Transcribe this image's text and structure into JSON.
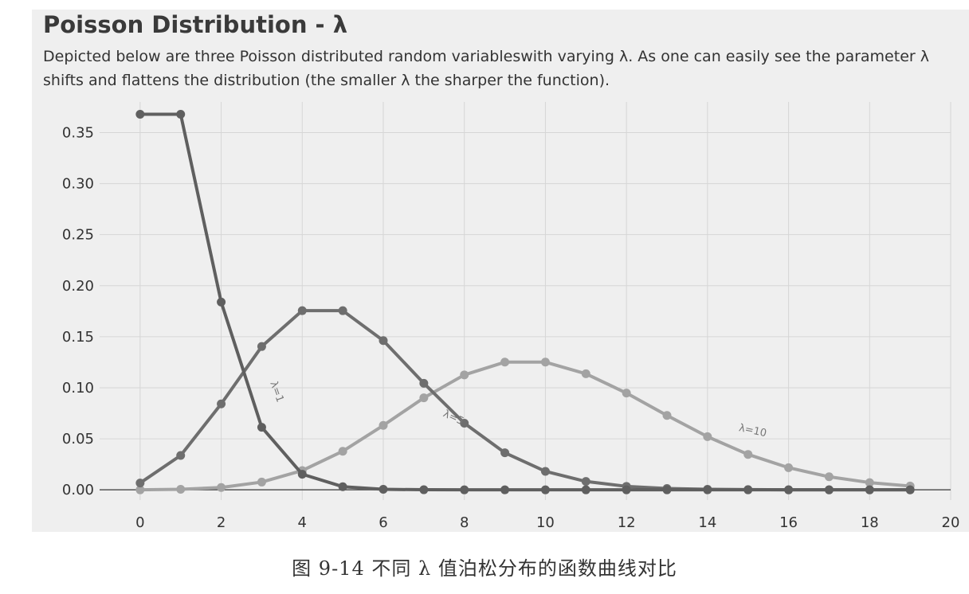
{
  "header": {
    "title": "Poisson Distribution - λ",
    "description": "Depicted below are three Poisson distributed random variableswith varying λ. As one can easily see the parameter λ shifts and flattens the distribution (the smaller λ the sharper the function)."
  },
  "caption": "图 9-14 不同 λ 值泊松分布的函数曲线对比",
  "chart_data": {
    "type": "line",
    "title": "",
    "xlabel": "",
    "ylabel": "",
    "xlim": [
      -1,
      20
    ],
    "ylim": [
      -0.01,
      0.38
    ],
    "grid": true,
    "xticks": [
      0,
      2,
      4,
      6,
      8,
      10,
      12,
      14,
      16,
      18,
      20
    ],
    "xtick_labels": [
      "0",
      "2",
      "4",
      "6",
      "8",
      "10",
      "12",
      "14",
      "16",
      "18",
      "20"
    ],
    "yticks": [
      0.0,
      0.05,
      0.1,
      0.15,
      0.2,
      0.25,
      0.3,
      0.35
    ],
    "ytick_labels": [
      "0.00",
      "0.05",
      "0.10",
      "0.15",
      "0.20",
      "0.25",
      "0.30",
      "0.35"
    ],
    "x": [
      0,
      1,
      2,
      3,
      4,
      5,
      6,
      7,
      8,
      9,
      10,
      11,
      12,
      13,
      14,
      15,
      16,
      17,
      18,
      19
    ],
    "series": [
      {
        "label": "λ=10",
        "color": "#a3a3a3",
        "values": [
          0.0,
          0.0005,
          0.0023,
          0.0076,
          0.0189,
          0.0378,
          0.0631,
          0.0901,
          0.1126,
          0.1251,
          0.1251,
          0.1137,
          0.0948,
          0.0729,
          0.0521,
          0.0347,
          0.0217,
          0.0128,
          0.0071,
          0.0037
        ]
      },
      {
        "label": "λ=5",
        "color": "#6e6e6e",
        "values": [
          0.0067,
          0.0337,
          0.0842,
          0.1404,
          0.1755,
          0.1755,
          0.1462,
          0.1044,
          0.0653,
          0.0363,
          0.0181,
          0.0082,
          0.0034,
          0.0013,
          0.0005,
          0.0002,
          0.0,
          0.0,
          0.0,
          0.0
        ]
      },
      {
        "label": "λ=1",
        "color": "#5f5f5f",
        "values": [
          0.3679,
          0.3679,
          0.1839,
          0.0613,
          0.0153,
          0.0031,
          0.0005,
          0.0001,
          0.0,
          0.0,
          0.0,
          0.0,
          0.0,
          0.0,
          0.0,
          0.0,
          0.0,
          0.0,
          0.0,
          0.0
        ]
      }
    ],
    "annotations": [
      {
        "text": "λ=1",
        "x": 3.3,
        "y": 0.095,
        "rotation": 70
      },
      {
        "text": "λ=5",
        "x": 7.7,
        "y": 0.068,
        "rotation": 25
      },
      {
        "text": "λ=10",
        "x": 15.1,
        "y": 0.055,
        "rotation": 12
      }
    ]
  }
}
